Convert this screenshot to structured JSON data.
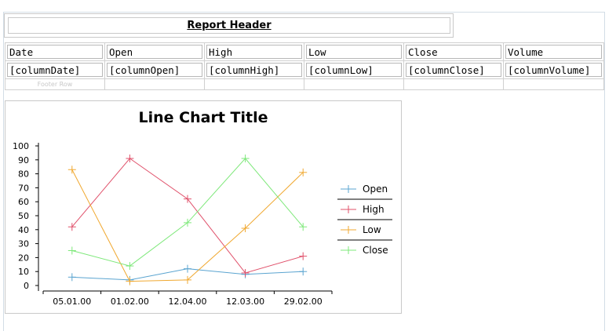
{
  "report_header": {
    "label": "Report Header"
  },
  "table": {
    "headers": [
      "Date",
      "Open",
      "High",
      "Low",
      "Close",
      "Volume"
    ],
    "fields": [
      "[columnDate]",
      "[columnOpen]",
      "[columnHigh]",
      "[columnLow]",
      "[columnClose]",
      "[columnVolume]"
    ],
    "footer_label": "Footer Row"
  },
  "chart_data": {
    "type": "line",
    "title": "Line Chart Title",
    "categories": [
      "05.01.00",
      "01.02.00",
      "12.04.00",
      "12.03.00",
      "29.02.00"
    ],
    "yticks": [
      0,
      10,
      20,
      30,
      40,
      50,
      60,
      70,
      80,
      90,
      100
    ],
    "ylim": [
      0,
      100
    ],
    "legend_position": "right",
    "series": [
      {
        "name": "Open",
        "color": "#5aa4d0",
        "values": [
          6,
          4,
          12,
          8,
          10
        ]
      },
      {
        "name": "High",
        "color": "#e0506a",
        "values": [
          42,
          91,
          62,
          9,
          21
        ]
      },
      {
        "name": "Low",
        "color": "#f0a830",
        "values": [
          83,
          3,
          4,
          41,
          81
        ]
      },
      {
        "name": "Close",
        "color": "#7ee87a",
        "values": [
          25,
          14,
          45,
          91,
          42
        ]
      }
    ]
  }
}
